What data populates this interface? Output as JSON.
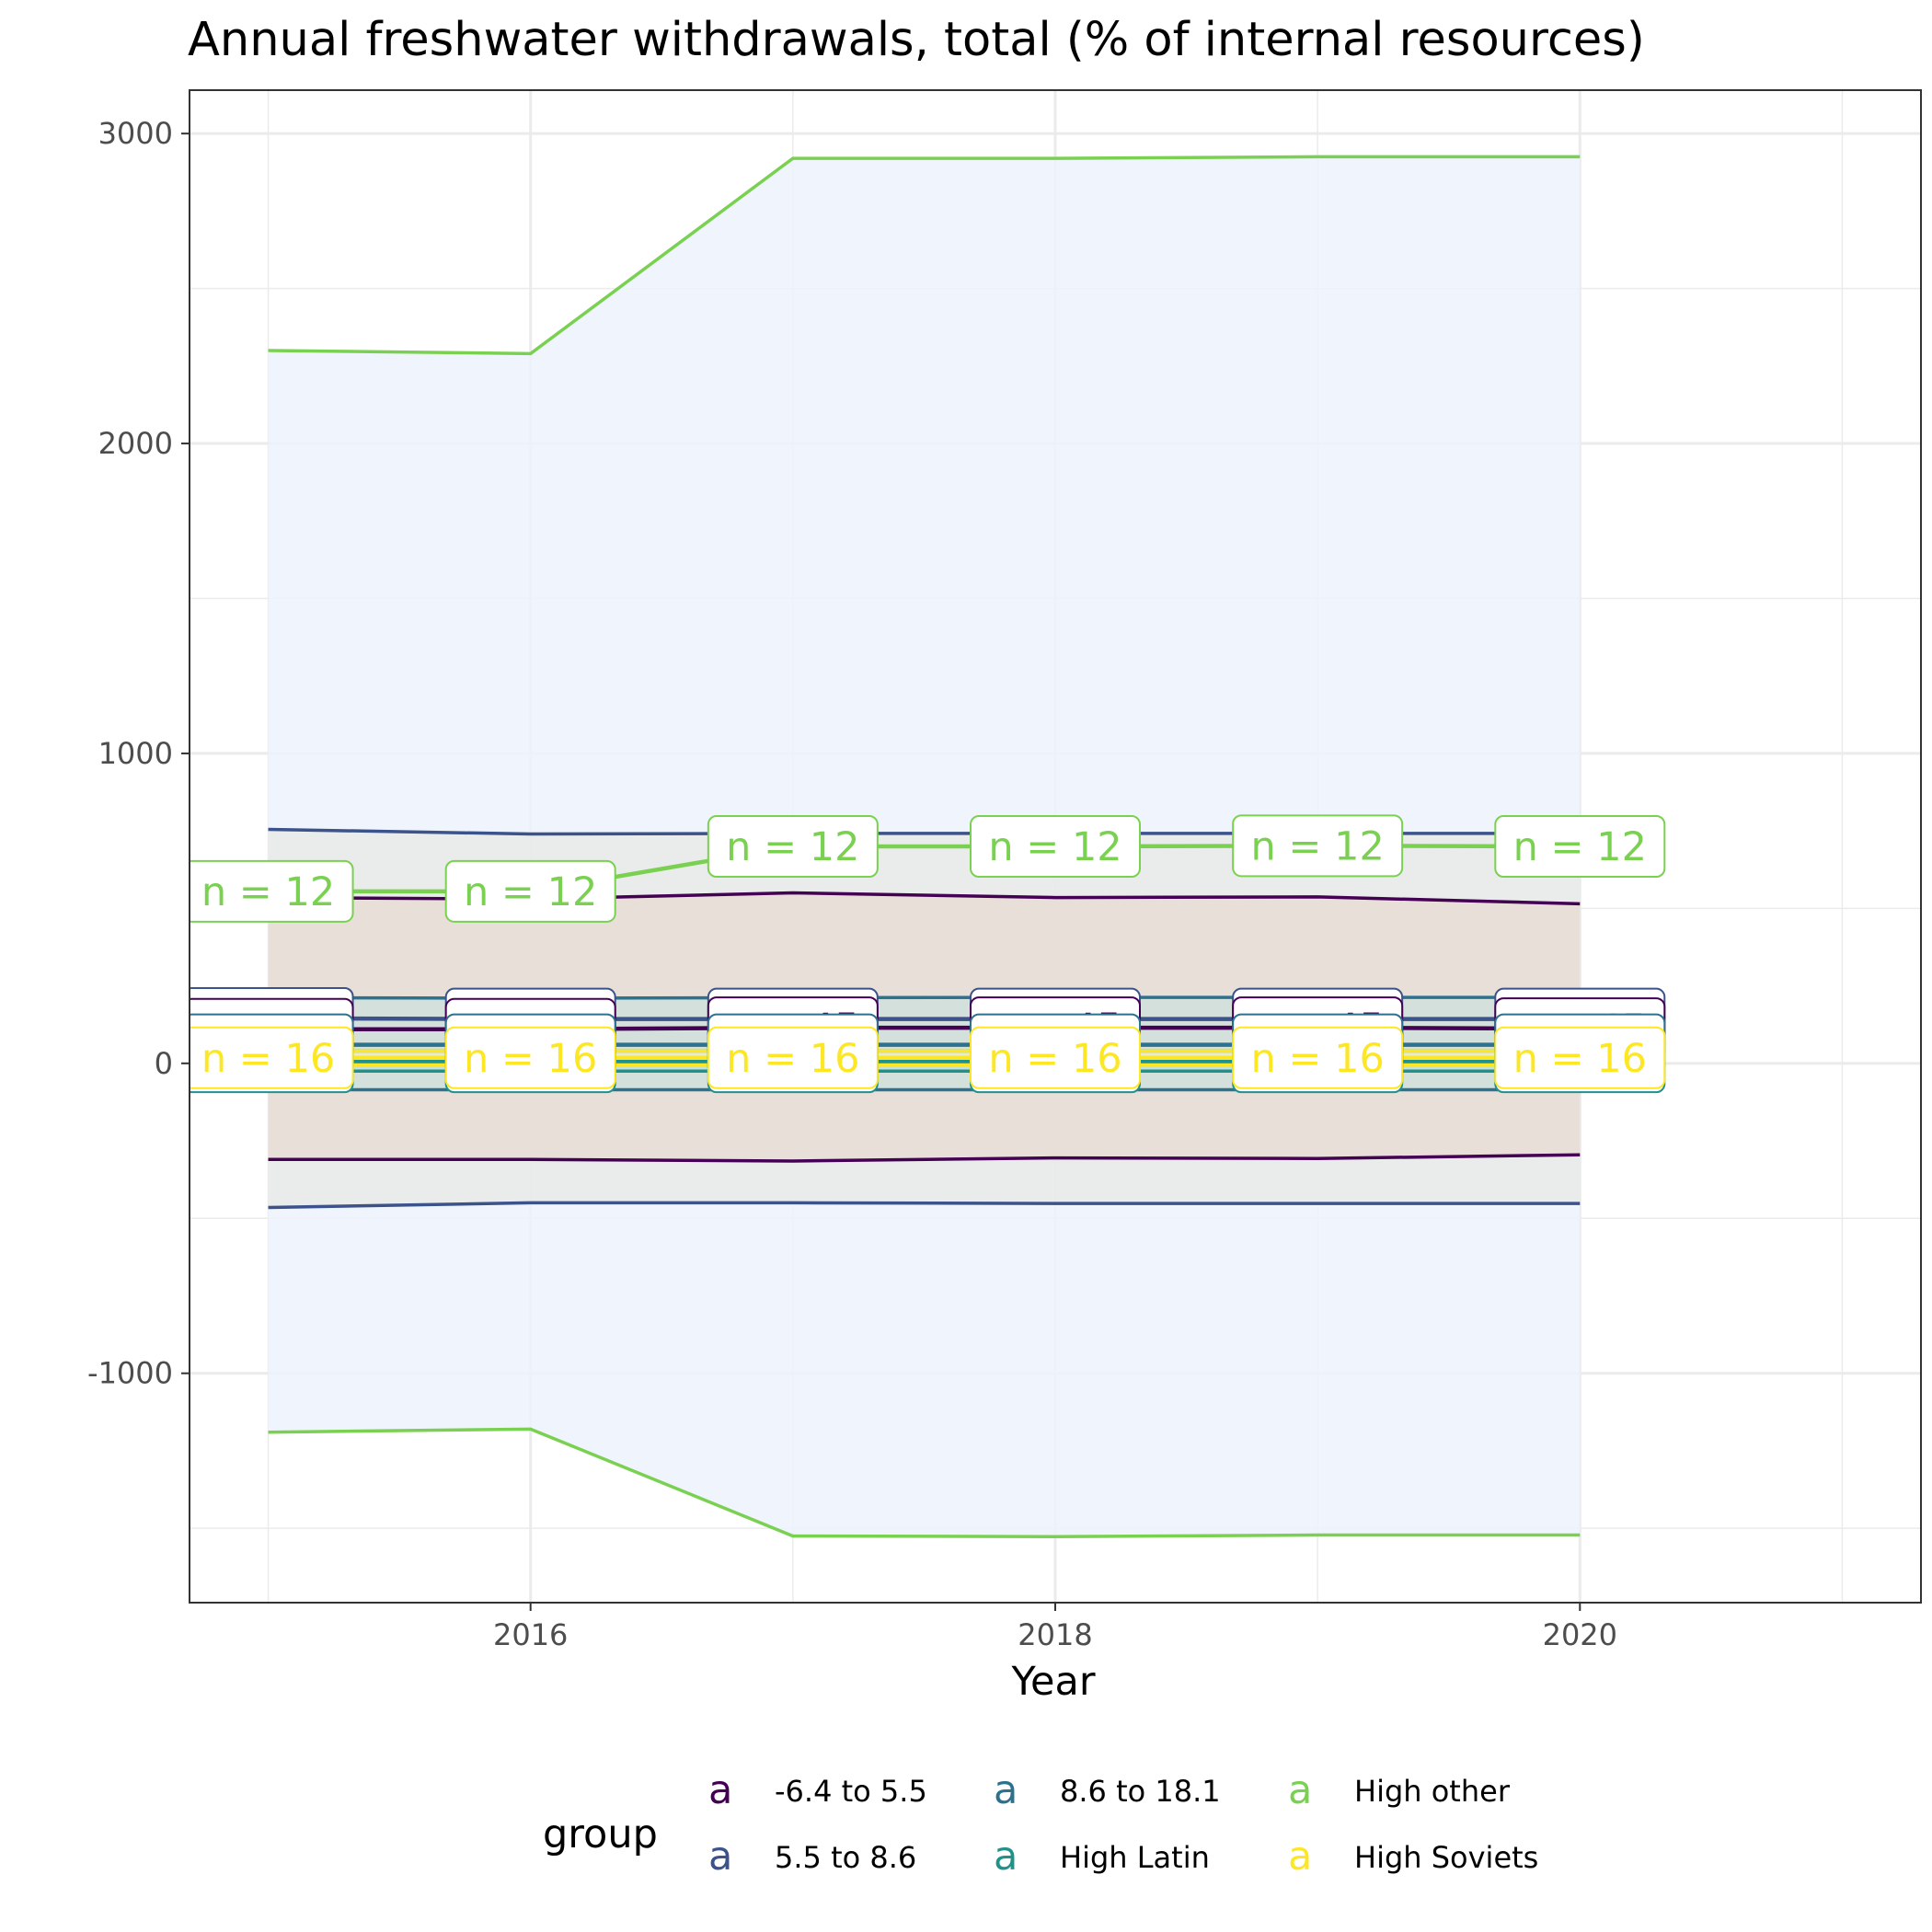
{
  "chart_data": {
    "type": "line",
    "title": "Annual freshwater withdrawals, total (% of internal resources)",
    "xlabel": "Year",
    "ylabel": "",
    "xlim": [
      2014.7,
      2021.3
    ],
    "ylim": [
      -1740,
      3140
    ],
    "x_ticks": [
      2016,
      2018,
      2020
    ],
    "y_ticks": [
      -1000,
      0,
      1000,
      2000,
      3000
    ],
    "x": [
      2015,
      2016,
      2017,
      2018,
      2019,
      2020
    ],
    "grid": true,
    "legend": {
      "title": "group",
      "position": "bottom",
      "key_glyph": "a"
    },
    "series": [
      {
        "name": "-6.4 to 5.5",
        "color": "#440154",
        "mean": [
          110,
          110,
          115,
          115,
          115,
          112
        ],
        "upper": [
          535,
          530,
          550,
          535,
          537,
          515
        ],
        "lower": [
          -310,
          -310,
          -315,
          -305,
          -307,
          -295
        ],
        "n_label": "n = 45",
        "band_fill": "#e8ddd6"
      },
      {
        "name": "5.5 to 8.6",
        "color": "#3b528b",
        "mean": [
          145,
          143,
          143,
          143,
          143,
          143
        ],
        "upper": [
          755,
          740,
          742,
          742,
          742,
          742
        ],
        "lower": [
          -465,
          -450,
          -450,
          -452,
          -452,
          -452
        ],
        "n_label": "n = 45",
        "band_fill": "#e8eae6"
      },
      {
        "name": "8.6 to 18.1",
        "color": "#2c728e",
        "mean": [
          60,
          60,
          60,
          60,
          60,
          60
        ],
        "upper": [
          212,
          210,
          212,
          213,
          213,
          213
        ],
        "lower": [
          -85,
          -85,
          -85,
          -85,
          -85,
          -85
        ],
        "n_label": "n = 44",
        "band_fill": "#cfe0dc"
      },
      {
        "name": "High Latin",
        "color": "#21918c",
        "mean": [
          5,
          5,
          5,
          5,
          5,
          5
        ],
        "upper": [
          40,
          40,
          40,
          40,
          40,
          40
        ],
        "lower": [
          -25,
          -25,
          -25,
          -25,
          -25,
          -25
        ],
        "n_label": "n = 19",
        "band_fill": "#c4e0d6"
      },
      {
        "name": "High other",
        "color": "#7ad151",
        "mean": [
          555,
          555,
          700,
          700,
          702,
          700
        ],
        "upper": [
          2300,
          2290,
          2920,
          2920,
          2925,
          2925
        ],
        "lower": [
          -1190,
          -1180,
          -1525,
          -1527,
          -1522,
          -1522
        ],
        "n_label": "n = 12",
        "band_fill": "#edf3fd"
      },
      {
        "name": "High Soviets",
        "color": "#fde725",
        "mean": [
          18,
          18,
          18,
          18,
          18,
          18
        ],
        "upper": [
          40,
          40,
          40,
          40,
          40,
          40
        ],
        "lower": [
          -5,
          -5,
          -5,
          -5,
          -5,
          -5
        ],
        "n_label": "n = 16",
        "band_fill": "#f3ecc0"
      }
    ]
  }
}
